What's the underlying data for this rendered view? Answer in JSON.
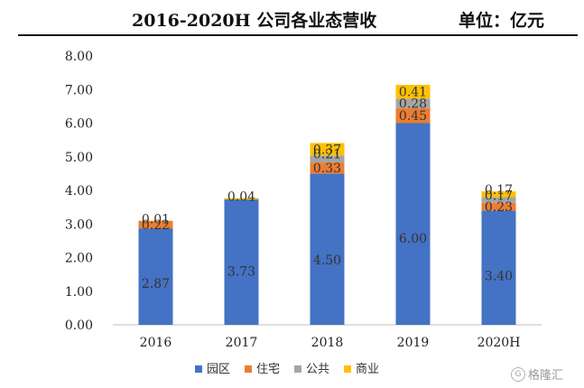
{
  "header": {
    "title": "2016-2020H 公司各业态营收",
    "unit": "单位：亿元"
  },
  "watermark": {
    "logo_icon": "gelonghui-logo-icon",
    "text": "格隆汇"
  },
  "colors": {
    "园区": "#4472C4",
    "住宅": "#ED7D31",
    "公共": "#A5A5A5",
    "商业": "#FFC000"
  },
  "chart_data": {
    "type": "bar",
    "stacked": true,
    "title": "2016-2020H 公司各业态营收",
    "unit": "单位：亿元",
    "categories": [
      "2016",
      "2017",
      "2018",
      "2019",
      "2020H"
    ],
    "series": [
      {
        "name": "园区",
        "values": [
          2.87,
          3.73,
          4.5,
          6.0,
          3.4
        ],
        "labels": [
          "2.87",
          "3.73",
          "4.50",
          "6.00",
          "3.40"
        ]
      },
      {
        "name": "住宅",
        "values": [
          0.22,
          null,
          0.33,
          0.45,
          0.23
        ],
        "labels": [
          "0.22",
          null,
          "0.33",
          "0.45",
          "0.23"
        ]
      },
      {
        "name": "公共",
        "values": [
          null,
          null,
          0.21,
          0.28,
          0.17
        ],
        "labels": [
          null,
          null,
          "0.21",
          "0.28",
          "0.17"
        ]
      },
      {
        "name": "商业",
        "values": [
          0.01,
          0.04,
          0.37,
          0.41,
          0.17
        ],
        "labels": [
          "0.01",
          "0.04",
          "0.37",
          "0.41",
          "0.17"
        ]
      }
    ],
    "yticks": [
      "0.00",
      "1.00",
      "2.00",
      "3.00",
      "4.00",
      "5.00",
      "6.00",
      "7.00",
      "8.00"
    ],
    "ylim": [
      0,
      8
    ],
    "grid": false,
    "legend_position": "bottom"
  }
}
